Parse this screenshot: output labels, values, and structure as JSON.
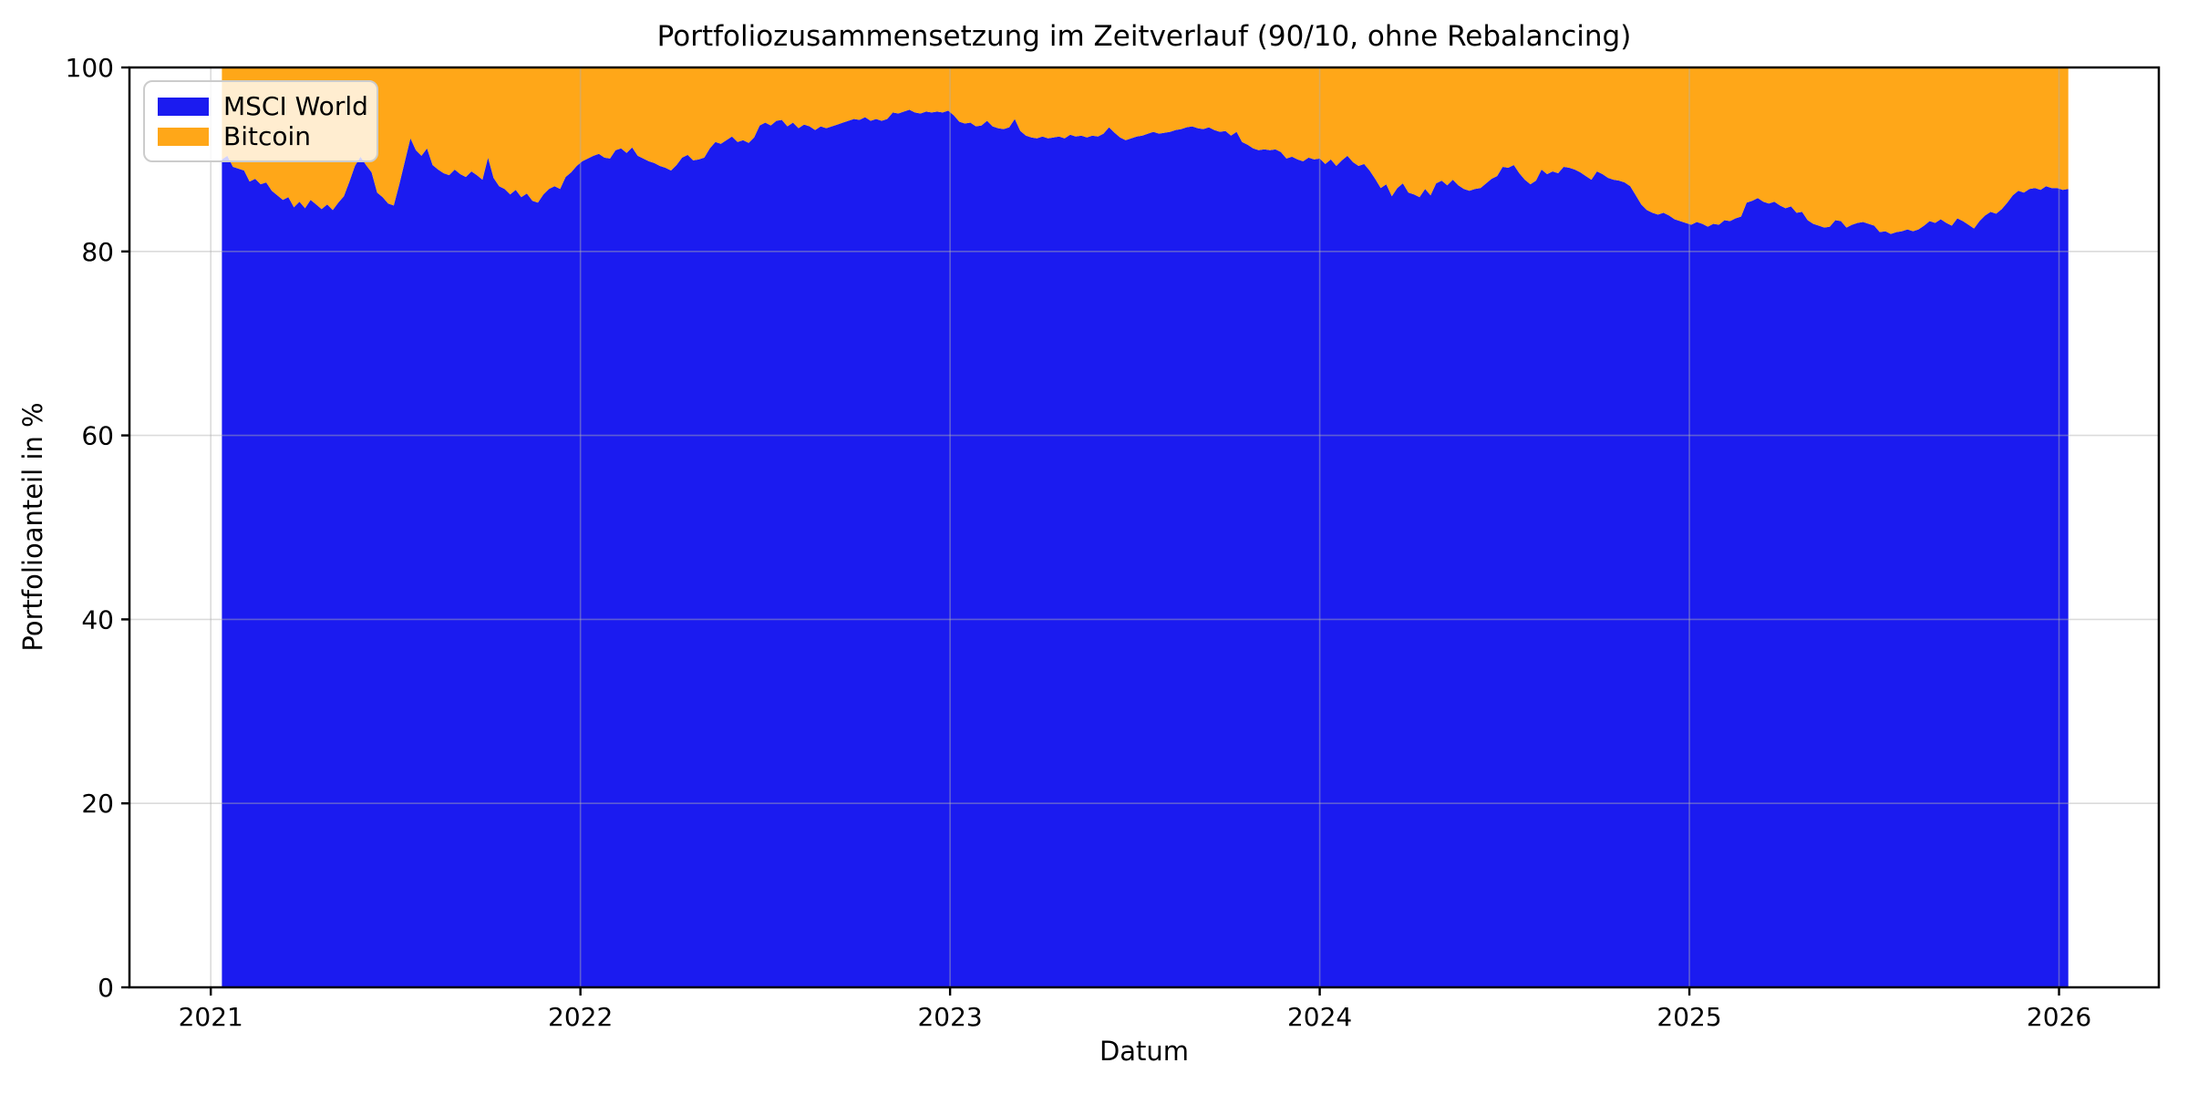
{
  "chart": {
    "title": "Portfoliozusammensetzung im Zeitverlauf (90/10, ohne Rebalancing)",
    "xlabel": "Datum",
    "ylabel": "Portfolioanteil in %",
    "legend": {
      "position": "upper left",
      "items": [
        {
          "label": "MSCI World",
          "color": "#1b1bf0"
        },
        {
          "label": "Bitcoin",
          "color": "#ffa718"
        }
      ]
    },
    "x_tick_labels": [
      "2021",
      "2022",
      "2023",
      "2024",
      "2025",
      "2026"
    ],
    "y_tick_labels": [
      "0",
      "20",
      "40",
      "60",
      "80",
      "100"
    ]
  },
  "colors": {
    "background": "#ffffff",
    "spine": "#000000",
    "grid": "#b0b0b0",
    "text": "#000000"
  },
  "chart_data": {
    "type": "area",
    "variant": "stacked-100-percent",
    "title": "Portfoliozusammensetzung im Zeitverlauf (90/10, ohne Rebalancing)",
    "xlabel": "Datum",
    "ylabel": "Portfolioanteil in %",
    "xlim": [
      2020.78,
      2026.27
    ],
    "ylim": [
      0,
      100
    ],
    "grid": true,
    "legend_position": "upper left",
    "x_ticks": [
      2021,
      2022,
      2023,
      2024,
      2025,
      2026
    ],
    "y_ticks": [
      0,
      20,
      40,
      60,
      80,
      100
    ],
    "x_unit": "year (decimal)",
    "x_start": 2021.03,
    "x_step": 0.015,
    "series": [
      {
        "name": "MSCI World",
        "color": "#1b1bf0",
        "values": [
          90.0,
          90.4,
          89.2,
          89.0,
          88.8,
          87.6,
          87.9,
          87.3,
          87.5,
          86.6,
          86.1,
          85.6,
          85.9,
          84.8,
          85.4,
          84.7,
          85.6,
          85.1,
          84.6,
          85.1,
          84.5,
          85.3,
          86.0,
          87.6,
          89.3,
          90.3,
          89.4,
          88.6,
          86.4,
          85.9,
          85.2,
          85.0,
          87.3,
          89.8,
          92.3,
          91.0,
          90.4,
          91.2,
          89.4,
          88.9,
          88.5,
          88.3,
          88.9,
          88.4,
          88.1,
          88.7,
          88.3,
          87.8,
          90.2,
          88.0,
          87.1,
          86.8,
          86.2,
          86.7,
          85.9,
          86.3,
          85.5,
          85.3,
          86.2,
          86.8,
          87.1,
          86.8,
          88.1,
          88.6,
          89.3,
          89.8,
          90.1,
          90.4,
          90.6,
          90.2,
          90.1,
          91.0,
          91.2,
          90.7,
          91.3,
          90.4,
          90.1,
          89.8,
          89.6,
          89.3,
          89.1,
          88.8,
          89.4,
          90.2,
          90.5,
          89.9,
          90.0,
          90.2,
          91.2,
          91.9,
          91.7,
          92.1,
          92.5,
          91.9,
          92.1,
          91.8,
          92.4,
          93.7,
          94.0,
          93.7,
          94.2,
          94.3,
          93.6,
          94.0,
          93.4,
          93.8,
          93.6,
          93.2,
          93.6,
          93.4,
          93.6,
          93.8,
          94.0,
          94.2,
          94.4,
          94.3,
          94.6,
          94.2,
          94.4,
          94.2,
          94.4,
          95.1,
          95.0,
          95.2,
          95.4,
          95.1,
          95.0,
          95.2,
          95.1,
          95.2,
          95.1,
          95.3,
          94.8,
          94.1,
          93.9,
          94.0,
          93.6,
          93.7,
          94.2,
          93.6,
          93.4,
          93.3,
          93.5,
          94.4,
          93.1,
          92.6,
          92.4,
          92.3,
          92.5,
          92.3,
          92.4,
          92.5,
          92.3,
          92.7,
          92.5,
          92.6,
          92.4,
          92.6,
          92.5,
          92.8,
          93.5,
          92.9,
          92.4,
          92.1,
          92.3,
          92.5,
          92.6,
          92.8,
          93.0,
          92.8,
          92.9,
          93.0,
          93.2,
          93.3,
          93.5,
          93.6,
          93.4,
          93.3,
          93.5,
          93.2,
          93.0,
          93.1,
          92.6,
          93.0,
          91.9,
          91.6,
          91.2,
          91.0,
          91.1,
          91.0,
          91.1,
          90.8,
          90.1,
          90.3,
          90.0,
          89.8,
          90.2,
          90.0,
          90.1,
          89.5,
          90.0,
          89.3,
          89.9,
          90.4,
          89.7,
          89.3,
          89.5,
          88.8,
          87.9,
          86.9,
          87.3,
          86.0,
          86.9,
          87.4,
          86.4,
          86.2,
          85.9,
          86.8,
          86.1,
          87.4,
          87.7,
          87.2,
          87.8,
          87.2,
          86.8,
          86.6,
          86.8,
          86.9,
          87.4,
          87.9,
          88.2,
          89.2,
          89.1,
          89.4,
          88.5,
          87.8,
          87.3,
          87.7,
          88.9,
          88.4,
          88.7,
          88.5,
          89.2,
          89.1,
          88.9,
          88.6,
          88.2,
          87.8,
          88.7,
          88.4,
          88.0,
          87.8,
          87.7,
          87.5,
          87.1,
          86.1,
          85.1,
          84.5,
          84.2,
          84.0,
          84.2,
          83.9,
          83.5,
          83.3,
          83.1,
          82.9,
          83.2,
          83.0,
          82.7,
          83.0,
          82.9,
          83.4,
          83.3,
          83.6,
          83.8,
          85.3,
          85.5,
          85.8,
          85.4,
          85.2,
          85.4,
          85.0,
          84.7,
          84.9,
          84.2,
          84.3,
          83.4,
          83.0,
          82.8,
          82.6,
          82.7,
          83.4,
          83.3,
          82.6,
          82.9,
          83.1,
          83.2,
          83.0,
          82.8,
          82.1,
          82.2,
          81.9,
          82.1,
          82.2,
          82.4,
          82.2,
          82.4,
          82.8,
          83.3,
          83.1,
          83.5,
          83.1,
          82.8,
          83.6,
          83.3,
          82.9,
          82.5,
          83.3,
          83.9,
          84.3,
          84.1,
          84.6,
          85.3,
          86.1,
          86.6,
          86.4,
          86.8,
          86.9,
          86.7,
          87.1,
          86.9,
          86.9,
          86.7,
          86.8
        ]
      },
      {
        "name": "Bitcoin",
        "color": "#ffa718",
        "values_rule": "100_minus_previous_series"
      }
    ]
  }
}
